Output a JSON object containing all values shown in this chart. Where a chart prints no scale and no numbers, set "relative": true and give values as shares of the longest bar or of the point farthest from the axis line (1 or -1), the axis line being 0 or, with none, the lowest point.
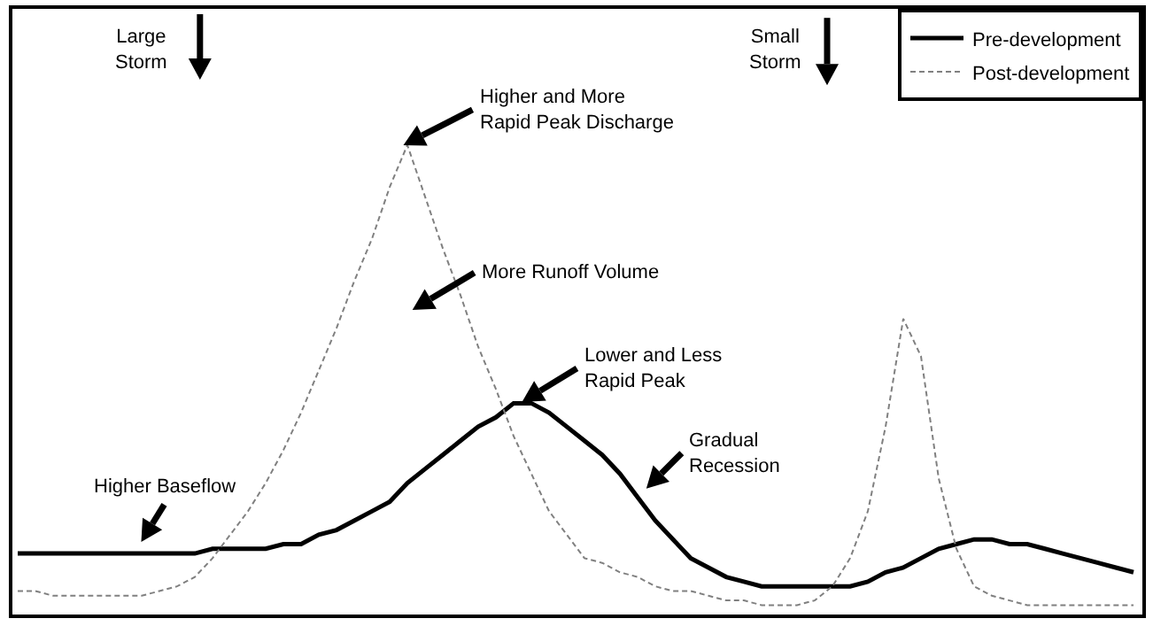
{
  "chart_data": {
    "type": "line",
    "relative": true,
    "legend": "top right",
    "categories": [
      null,
      null,
      null,
      null,
      null,
      null,
      null,
      null,
      null,
      null,
      null,
      null,
      null,
      null,
      null,
      null,
      null,
      null,
      null,
      null,
      null,
      null,
      null,
      null,
      null,
      null,
      null,
      null,
      null,
      null,
      null,
      null,
      null,
      null,
      null,
      null,
      null,
      null,
      null,
      null,
      null,
      null,
      null,
      null,
      null,
      null,
      null,
      null,
      null,
      null,
      null,
      null,
      null,
      null,
      null,
      null,
      null,
      null,
      null,
      null,
      null,
      null,
      null,
      null
    ],
    "series": [
      {
        "name": "Pre-development",
        "color": "#000000",
        "line_style": "solid",
        "values": [
          0.13,
          0.13,
          0.13,
          0.13,
          0.13,
          0.13,
          0.13,
          0.13,
          0.13,
          0.13,
          0.13,
          0.14,
          0.14,
          0.14,
          0.14,
          0.15,
          0.15,
          0.17,
          0.18,
          0.2,
          0.22,
          0.24,
          0.28,
          0.31,
          0.34,
          0.37,
          0.4,
          0.42,
          0.45,
          0.45,
          0.43,
          0.4,
          0.37,
          0.34,
          0.3,
          0.25,
          0.2,
          0.16,
          0.12,
          0.1,
          0.08,
          0.07,
          0.06,
          0.06,
          0.06,
          0.06,
          0.06,
          0.06,
          0.07,
          0.09,
          0.1,
          0.12,
          0.14,
          0.15,
          0.16,
          0.16,
          0.15,
          0.15,
          0.14,
          0.13,
          0.12,
          0.11,
          0.1,
          0.09
        ]
      },
      {
        "name": "Post-development",
        "color": "#808080",
        "line_style": "dashed",
        "values": [
          0.05,
          0.05,
          0.04,
          0.04,
          0.04,
          0.04,
          0.04,
          0.04,
          0.05,
          0.06,
          0.08,
          0.12,
          0.17,
          0.22,
          0.28,
          0.35,
          0.43,
          0.52,
          0.61,
          0.71,
          0.8,
          0.91,
          1,
          0.89,
          0.78,
          0.68,
          0.57,
          0.48,
          0.38,
          0.3,
          0.22,
          0.17,
          0.12,
          0.11,
          0.09,
          0.08,
          0.06,
          0.05,
          0.05,
          0.04,
          0.03,
          0.03,
          0.02,
          0.02,
          0.02,
          0.03,
          0.06,
          0.12,
          0.22,
          0.4,
          0.63,
          0.55,
          0.29,
          0.14,
          0.06,
          0.04,
          0.03,
          0.02,
          0.02,
          0.02,
          0.02,
          0.02,
          0.02,
          0.02
        ]
      }
    ],
    "annotations": [
      "Large\nStorm",
      "Small\nStorm",
      "Higher and More\nRapid Peak Discharge",
      "More Runoff Volume",
      "Lower and Less\nRapid Peak",
      "Gradual\nRecession",
      "Higher Baseflow"
    ]
  }
}
